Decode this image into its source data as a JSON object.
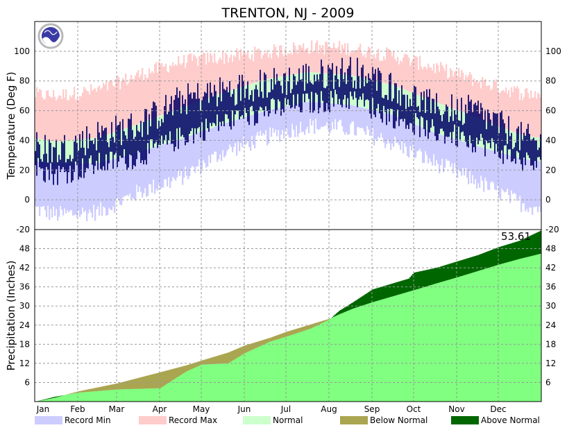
{
  "chart_data": [
    {
      "panel": "temperature",
      "type": "bar",
      "title": "TRENTON, NJ - 2009",
      "ylabel": "Temperature (Deg F)",
      "ylim": [
        -20,
        120
      ],
      "yticks": [
        -20,
        0,
        20,
        40,
        60,
        80,
        100
      ],
      "grid": true,
      "months": [
        "Jan",
        "Feb",
        "Mar",
        "Apr",
        "May",
        "Jun",
        "Jul",
        "Aug",
        "Sep",
        "Oct",
        "Nov",
        "Dec"
      ],
      "normal_high_monthly": [
        39,
        42,
        51,
        62,
        72,
        81,
        86,
        84,
        77,
        66,
        55,
        44
      ],
      "normal_low_monthly": [
        24,
        25,
        32,
        41,
        51,
        60,
        66,
        64,
        57,
        45,
        36,
        28
      ],
      "record_max_monthly": [
        70,
        74,
        84,
        93,
        96,
        99,
        103,
        102,
        97,
        89,
        80,
        72
      ],
      "record_min_monthly": [
        -10,
        -8,
        5,
        15,
        32,
        42,
        50,
        48,
        38,
        25,
        12,
        -2
      ],
      "observed_high_monthly": [
        33,
        44,
        50,
        67,
        73,
        78,
        83,
        87,
        76,
        62,
        59,
        42
      ],
      "observed_low_monthly": [
        17,
        24,
        29,
        42,
        52,
        60,
        65,
        68,
        56,
        46,
        39,
        27
      ],
      "colors": {
        "record_min": "#ccccff",
        "record_max": "#ffcccc",
        "normal": "#ccffcc",
        "observed": "#000066"
      }
    },
    {
      "panel": "precipitation",
      "type": "area",
      "ylabel": "Precipitation (Inches)",
      "ylim": [
        0,
        54
      ],
      "yticks": [
        6,
        12,
        18,
        24,
        30,
        36,
        42,
        48
      ],
      "grid": true,
      "months": [
        "Jan",
        "Feb",
        "Mar",
        "Apr",
        "May",
        "Jun",
        "Jul",
        "Aug",
        "Sep",
        "Oct",
        "Nov",
        "Dec"
      ],
      "x_day_of_year": [
        1,
        15,
        32,
        60,
        91,
        110,
        121,
        140,
        152,
        170,
        182,
        200,
        213,
        220,
        230,
        244,
        270,
        274,
        290,
        305,
        320,
        335,
        350,
        365
      ],
      "normal_cumulative": [
        0,
        1.2,
        3.2,
        5.7,
        9.2,
        11.4,
        12.9,
        15.4,
        17.6,
        20.0,
        21.9,
        24.3,
        26.0,
        27.4,
        29.2,
        31.2,
        34.5,
        35.0,
        37.1,
        39.0,
        41.0,
        43.0,
        44.8,
        46.4
      ],
      "observed_cumulative": [
        0,
        1.5,
        2.8,
        3.8,
        4.2,
        9.5,
        11.6,
        12.0,
        15.2,
        18.8,
        20.4,
        23.0,
        25.8,
        28.5,
        31.2,
        35.2,
        38.6,
        40.5,
        42.0,
        44.0,
        46.0,
        48.5,
        50.5,
        53.61
      ],
      "total_label": "53.61",
      "colors": {
        "normal": "#80ff80",
        "below_normal": "#aaa550",
        "above_normal": "#006600"
      }
    }
  ],
  "legend": [
    {
      "label": "Record Min",
      "color": "#ccccff"
    },
    {
      "label": "Record Max",
      "color": "#ffcccc"
    },
    {
      "label": "Normal",
      "color": "#ccffcc"
    },
    {
      "label": "Below Normal",
      "color": "#aaa550"
    },
    {
      "label": "Above Normal",
      "color": "#006600"
    }
  ],
  "logo_text": "NOAA"
}
